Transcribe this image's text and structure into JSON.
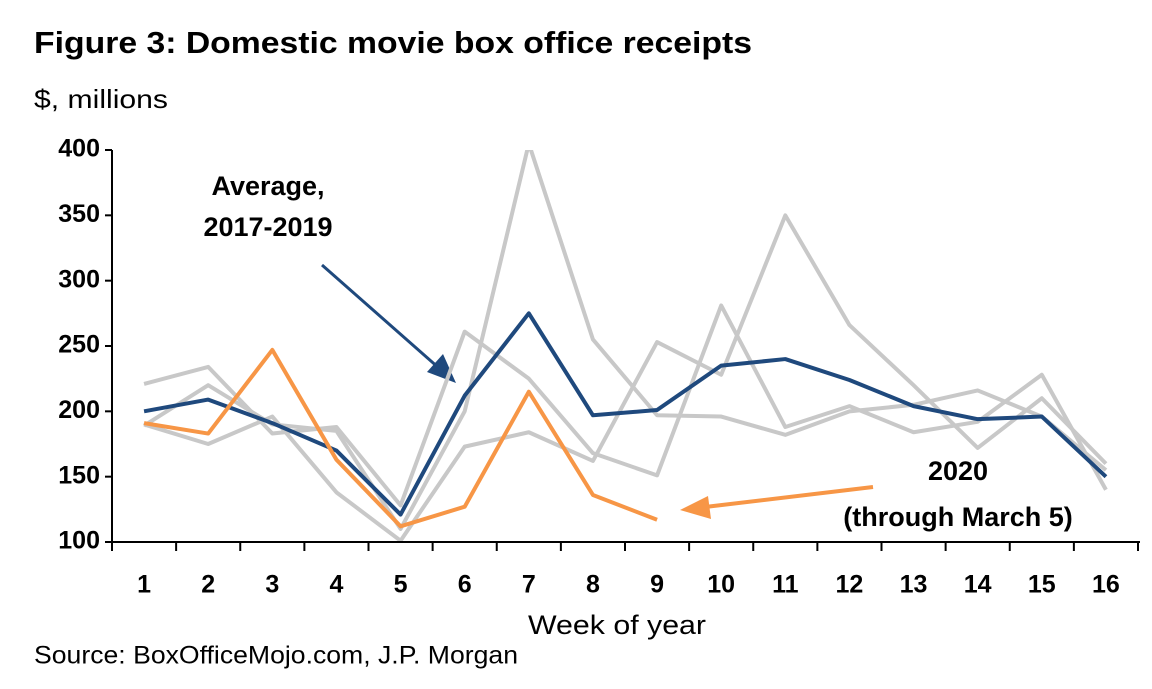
{
  "chart_data": {
    "type": "line",
    "title": "Figure 3: Domestic movie box office receipts",
    "subtitle": "$, millions",
    "x_label": "Week of year",
    "source": "Source: BoxOfficeMojo.com, J.P. Morgan",
    "annotations": [
      [
        "Average,",
        "2017-2019"
      ],
      [
        "2020",
        "(through March 5)"
      ]
    ],
    "categories": [
      "1",
      "2",
      "3",
      "4",
      "5",
      "6",
      "7",
      "8",
      "9",
      "10",
      "11",
      "12",
      "13",
      "14",
      "15",
      "16"
    ],
    "ylim": [
      100,
      400
    ],
    "yticks": [
      100,
      150,
      200,
      250,
      300,
      350,
      400
    ],
    "series": [
      {
        "color": "#c8c8c8",
        "values": [
          221,
          234,
          183,
          188,
          128,
          261,
          225,
          168,
          151,
          281,
          188,
          204,
          184,
          192,
          228,
          140
        ]
      },
      {
        "color": "#c8c8c8",
        "values": [
          190,
          175,
          196,
          138,
          101,
          173,
          184,
          162,
          253,
          228,
          350,
          266,
          220,
          172,
          210,
          160
        ]
      },
      {
        "color": "#c8c8c8",
        "values": [
          189,
          220,
          190,
          185,
          110,
          200,
          405,
          255,
          197,
          196,
          182,
          200,
          205,
          216,
          196,
          155
        ]
      },
      {
        "name": "Average, 2017-2019",
        "color": "#1f497d",
        "values": [
          200,
          209,
          191,
          170,
          121,
          212,
          275,
          197,
          201,
          235,
          240,
          224,
          204,
          194,
          196,
          150
        ]
      },
      {
        "name": "2020",
        "color": "#f79646",
        "values": [
          191,
          183,
          247,
          163,
          112,
          127,
          215,
          136,
          117,
          null,
          null,
          null,
          null,
          null,
          null,
          null
        ]
      }
    ]
  }
}
